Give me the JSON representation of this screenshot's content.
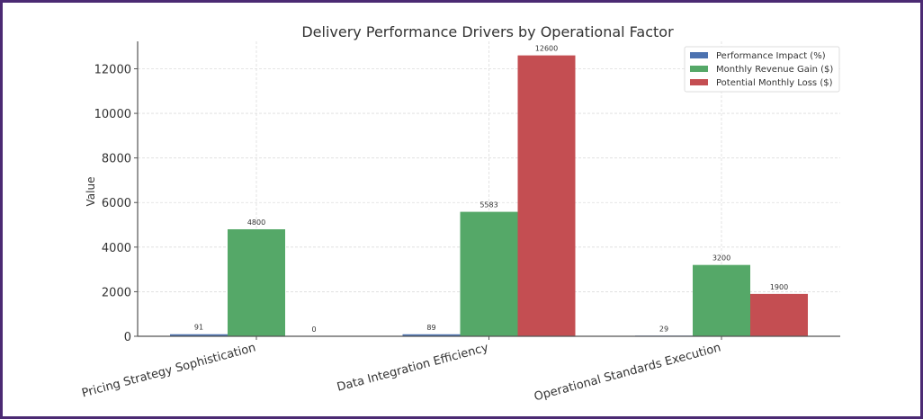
{
  "chart_data": {
    "type": "bar",
    "title": "Delivery Performance Drivers by Operational Factor",
    "xlabel": "",
    "ylabel": "Value",
    "ylim": [
      0,
      13230
    ],
    "yticks": [
      0,
      2000,
      4000,
      6000,
      8000,
      10000,
      12000
    ],
    "grid": true,
    "legend_position": "top-right",
    "categories": [
      "Pricing Strategy Sophistication",
      "Data Integration Efficiency",
      "Operational Standards Execution"
    ],
    "series": [
      {
        "name": "Performance Impact (%)",
        "color": "#4c72b0",
        "values": [
          91,
          89,
          29
        ]
      },
      {
        "name": "Monthly Revenue Gain ($)",
        "color": "#55a868",
        "values": [
          4800,
          5583,
          3200
        ]
      },
      {
        "name": "Potential Monthly Loss ($)",
        "color": "#c44e52",
        "values": [
          0,
          12600,
          1900
        ]
      }
    ]
  }
}
